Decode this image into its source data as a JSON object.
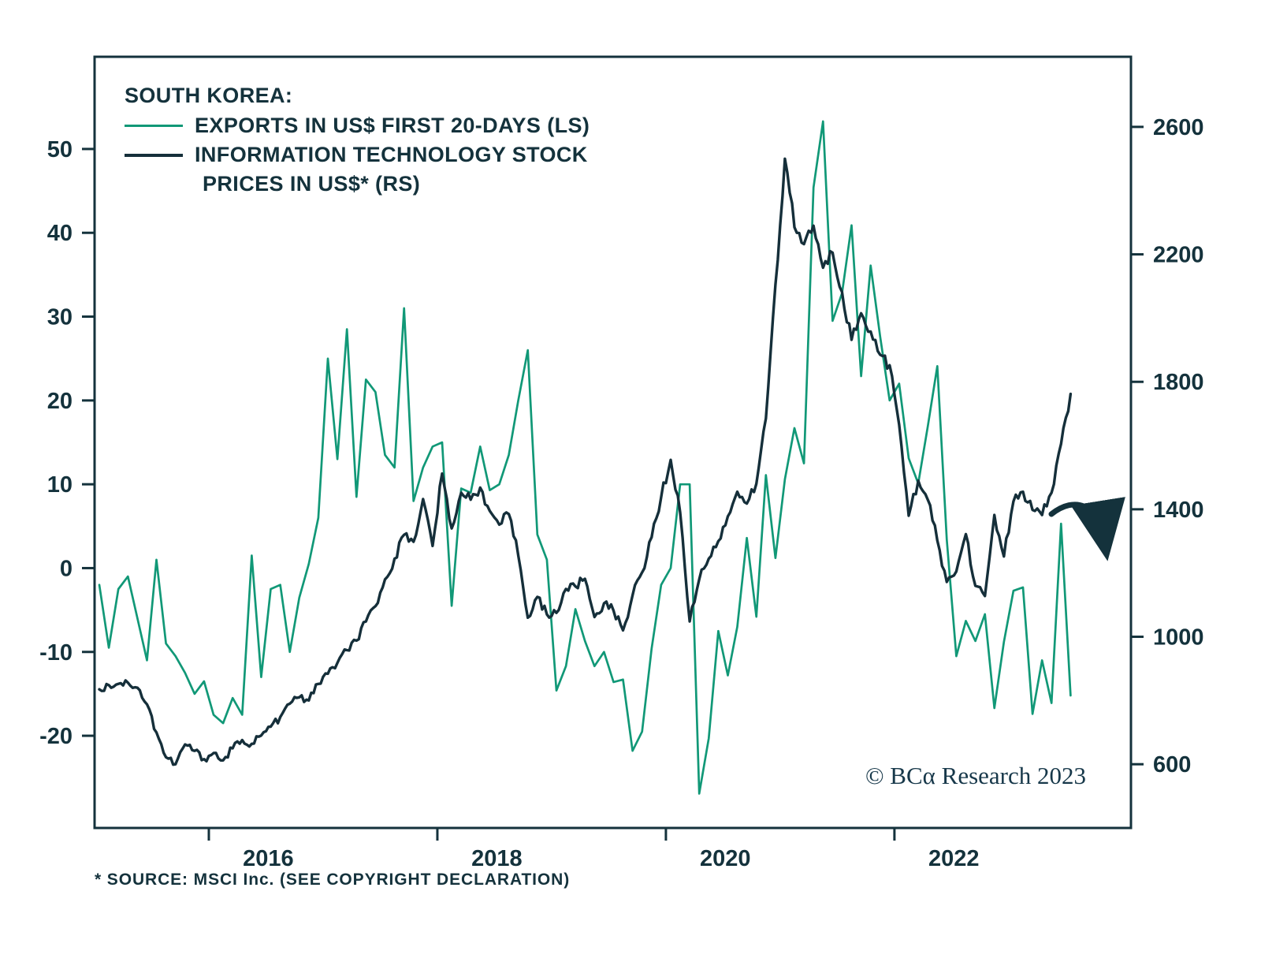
{
  "legend": {
    "title": "SOUTH KOREA:",
    "entry1": "EXPORTS IN US$ FIRST 20-DAYS (LS)",
    "entry2_line1": "INFORMATION TECHNOLOGY STOCK",
    "entry2_line2": "PRICES IN US$* (RS)"
  },
  "notes": {
    "source": "* SOURCE: MSCI Inc. (SEE COPYRIGHT DECLARATION)",
    "copyright": "© BCα Research 2023"
  },
  "chart_data": {
    "type": "line",
    "title": "SOUTH KOREA: exports vs information technology stock prices",
    "x_axis": {
      "tick_years": [
        2016,
        2018,
        2020,
        2022
      ],
      "range": [
        2015.0,
        2024.07
      ],
      "label_offset": 0.52
    },
    "left_axis": {
      "label": "Exports in US$ first 20-days, % (LS)",
      "ticks": [
        50,
        40,
        30,
        20,
        10,
        0,
        -10,
        -20
      ],
      "range": [
        -31,
        61
      ]
    },
    "right_axis": {
      "label": "Information technology stock prices in US$ (RS)",
      "ticks": [
        2600,
        2200,
        1800,
        1400,
        1000,
        600
      ],
      "range": [
        400,
        2820
      ]
    },
    "series": [
      {
        "name": "EXPORTS IN US$ FIRST 20-DAYS (LS)",
        "axis": "left",
        "color": "#119877",
        "start_year": 2015,
        "start_month": 1,
        "frequency": "monthly",
        "values": [
          -2,
          -9.5,
          -2.5,
          -1,
          -6,
          -11,
          1,
          -9,
          -10.5,
          -12.5,
          -15,
          -13.5,
          -17.5,
          -18.5,
          -15.5,
          -17.5,
          1.5,
          -13,
          -2.5,
          -2,
          -10,
          -3.5,
          0.5,
          6,
          25,
          13,
          28.5,
          8.5,
          22.5,
          21,
          13.5,
          12,
          31,
          8,
          12,
          14.5,
          15,
          -4.5,
          9.5,
          9,
          14.5,
          9.3,
          10,
          13.5,
          20,
          26,
          4,
          1,
          -14.6,
          -11.7,
          -4.9,
          -8.7,
          -11.7,
          -10,
          -13.6,
          -13.3,
          -21.8,
          -19.5,
          -9.6,
          -2,
          0,
          10,
          10,
          -26.9,
          -20.3,
          -7.5,
          -12.8,
          -7,
          3.6,
          -5.8,
          11.1,
          1.2,
          10.6,
          16.7,
          12.5,
          45.4,
          53.3,
          29.5,
          32.8,
          40.9,
          22.9,
          36.1,
          27.6,
          20,
          22,
          13.1,
          10.1,
          16.9,
          24.1,
          3.4,
          -10.5,
          -6.3,
          -8.7,
          -5.5,
          -16.7,
          -8.8,
          -2.7,
          -2.3,
          -17.4,
          -11,
          -16.1,
          5.3,
          -15.2
        ]
      },
      {
        "name": "INFORMATION TECHNOLOGY STOCK PRICES IN US$* (RS)",
        "axis": "right",
        "color": "#152f3a",
        "start_year": 2015,
        "start_month": 1,
        "frequency": "monthly",
        "values": [
          835,
          848,
          852,
          856,
          840,
          788,
          700,
          622,
          600,
          662,
          642,
          616,
          635,
          612,
          650,
          676,
          664,
          690,
          718,
          748,
          790,
          810,
          800,
          852,
          884,
          918,
          958,
          988,
          1048,
          1096,
          1180,
          1245,
          1320,
          1298,
          1432,
          1285,
          1512,
          1340,
          1452,
          1430,
          1468,
          1395,
          1352,
          1385,
          1255,
          1060,
          1125,
          1070,
          1075,
          1150,
          1158,
          1182,
          1062,
          1105,
          1082,
          1020,
          1130,
          1202,
          1312,
          1438,
          1555,
          1390,
          1048,
          1180,
          1245,
          1300,
          1378,
          1455,
          1418,
          1480,
          1685,
          2105,
          2500,
          2285,
          2232,
          2290,
          2158,
          2205,
          2082,
          1932,
          2015,
          1958,
          1885,
          1852,
          1665,
          1380,
          1490,
          1430,
          1302,
          1172,
          1205,
          1322,
          1160,
          1128,
          1382,
          1252,
          1425,
          1455,
          1398,
          1382,
          1452,
          1605,
          1762
        ]
      }
    ],
    "annotations": [
      {
        "type": "arrow",
        "direction": "down-right",
        "meaning": "projected decline of stock prices"
      }
    ]
  }
}
